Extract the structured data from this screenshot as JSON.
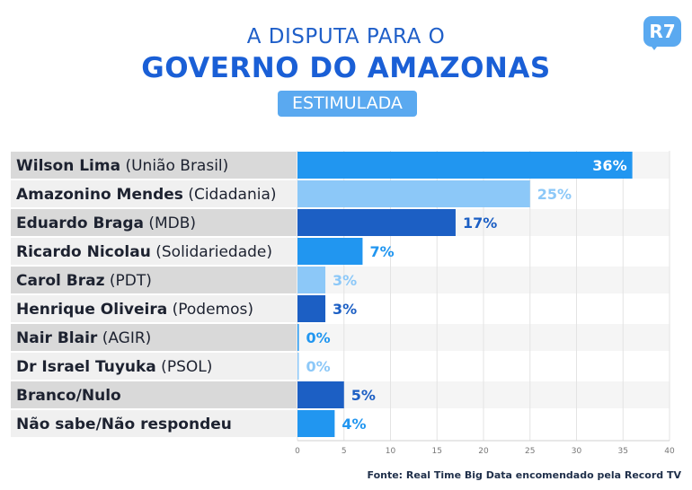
{
  "header": {
    "title_line1": "A DISPUTA PARA O",
    "title_line2": "GOVERNO DO AMAZONAS",
    "badge": "ESTIMULADA",
    "logo": "R7"
  },
  "source": "Fonte: Real Time Big Data encomendado pela Record TV",
  "colors": {
    "dark_blue": "#1c5fc4",
    "mid_blue": "#2196f0",
    "light_blue": "#8cc8f8",
    "label_bg_dark": "#d9d9d9",
    "label_bg_light": "#f0f0f0"
  },
  "chart_data": {
    "type": "bar",
    "orientation": "horizontal",
    "categories": [
      {
        "name": "Wilson Lima",
        "party": "(União Brasil)"
      },
      {
        "name": "Amazonino Mendes",
        "party": "(Cidadania)"
      },
      {
        "name": "Eduardo Braga",
        "party": "(MDB)"
      },
      {
        "name": "Ricardo Nicolau",
        "party": "(Solidariedade)"
      },
      {
        "name": "Carol Braz",
        "party": "(PDT)"
      },
      {
        "name": "Henrique Oliveira",
        "party": "(Podemos)"
      },
      {
        "name": "Nair Blair",
        "party": "(AGIR)"
      },
      {
        "name": "Dr Israel Tuyuka",
        "party": "(PSOL)"
      },
      {
        "name": "Branco/Nulo",
        "party": ""
      },
      {
        "name": "Não sabe/Não respondeu",
        "party": ""
      }
    ],
    "values": [
      36,
      25,
      17,
      7,
      3,
      3,
      0,
      0,
      5,
      4
    ],
    "value_labels": [
      "36%",
      "25%",
      "17%",
      "7%",
      "3%",
      "3%",
      "0%",
      "0%",
      "5%",
      "4%"
    ],
    "bar_colors": [
      "#2196f0",
      "#8cc8f8",
      "#1c5fc4",
      "#2196f0",
      "#8cc8f8",
      "#1c5fc4",
      "#2196f0",
      "#8cc8f8",
      "#1c5fc4",
      "#2196f0"
    ],
    "label_colors": [
      "#ffffff",
      "#8cc8f8",
      "#1c5fc4",
      "#2196f0",
      "#8cc8f8",
      "#1c5fc4",
      "#2196f0",
      "#8cc8f8",
      "#1c5fc4",
      "#2196f0"
    ],
    "label_inside": [
      true,
      false,
      false,
      false,
      false,
      false,
      false,
      false,
      false,
      false
    ],
    "xlim": [
      0,
      40
    ],
    "xticks": [
      "0",
      "5",
      "10",
      "15",
      "20",
      "25",
      "30",
      "35",
      "40"
    ],
    "grid": true
  }
}
